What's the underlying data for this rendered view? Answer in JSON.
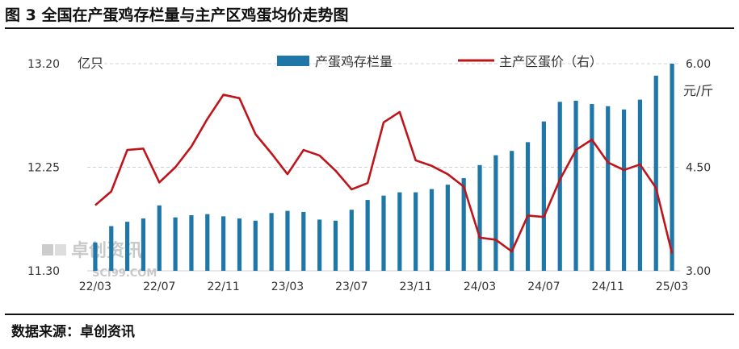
{
  "title": "图 3 全国在产蛋鸡存栏量与主产区鸡蛋均价走势图",
  "source": "数据来源：卓创资讯",
  "watermark": {
    "name": "卓创资讯",
    "site": "SCI99.COM"
  },
  "colors": {
    "bar": "#1f77a8",
    "line": "#c0141b",
    "grid": "#d0d0d0"
  },
  "chart_data": {
    "type": "bar+line",
    "left_axis": {
      "unit": "亿只",
      "range": [
        11.3,
        13.2
      ],
      "ticks": [
        "13.20",
        "12.25",
        "11.30"
      ]
    },
    "right_axis": {
      "unit": "元/斤",
      "range": [
        3.0,
        6.0
      ],
      "ticks": [
        "6.00",
        "4.50",
        "3.00"
      ]
    },
    "x_tick_labels": [
      "22/03",
      "22/07",
      "22/11",
      "23/03",
      "23/07",
      "23/11",
      "24/03",
      "24/07",
      "24/11",
      "25/03"
    ],
    "series": [
      {
        "name": "产蛋鸡存栏量",
        "type": "bar",
        "axis": "left",
        "values": [
          11.56,
          11.71,
          11.75,
          11.78,
          11.9,
          11.79,
          11.81,
          11.82,
          11.8,
          11.78,
          11.76,
          11.83,
          11.85,
          11.84,
          11.77,
          11.76,
          11.86,
          11.95,
          11.99,
          12.02,
          12.02,
          12.05,
          12.09,
          12.15,
          12.27,
          12.36,
          12.4,
          12.48,
          12.67,
          12.85,
          12.86,
          12.83,
          12.81,
          12.78,
          12.87,
          13.09,
          13.2
        ]
      },
      {
        "name": "主产区蛋价（右）",
        "type": "line",
        "axis": "right",
        "values": [
          3.95,
          4.15,
          4.75,
          4.77,
          4.28,
          4.5,
          4.8,
          5.2,
          5.55,
          5.5,
          4.98,
          4.7,
          4.4,
          4.75,
          4.67,
          4.45,
          4.18,
          4.27,
          5.15,
          5.3,
          4.6,
          4.52,
          4.4,
          4.22,
          3.48,
          3.45,
          3.28,
          3.8,
          3.78,
          4.32,
          4.75,
          4.9,
          4.57,
          4.46,
          4.54,
          4.2,
          3.25
        ]
      }
    ]
  }
}
